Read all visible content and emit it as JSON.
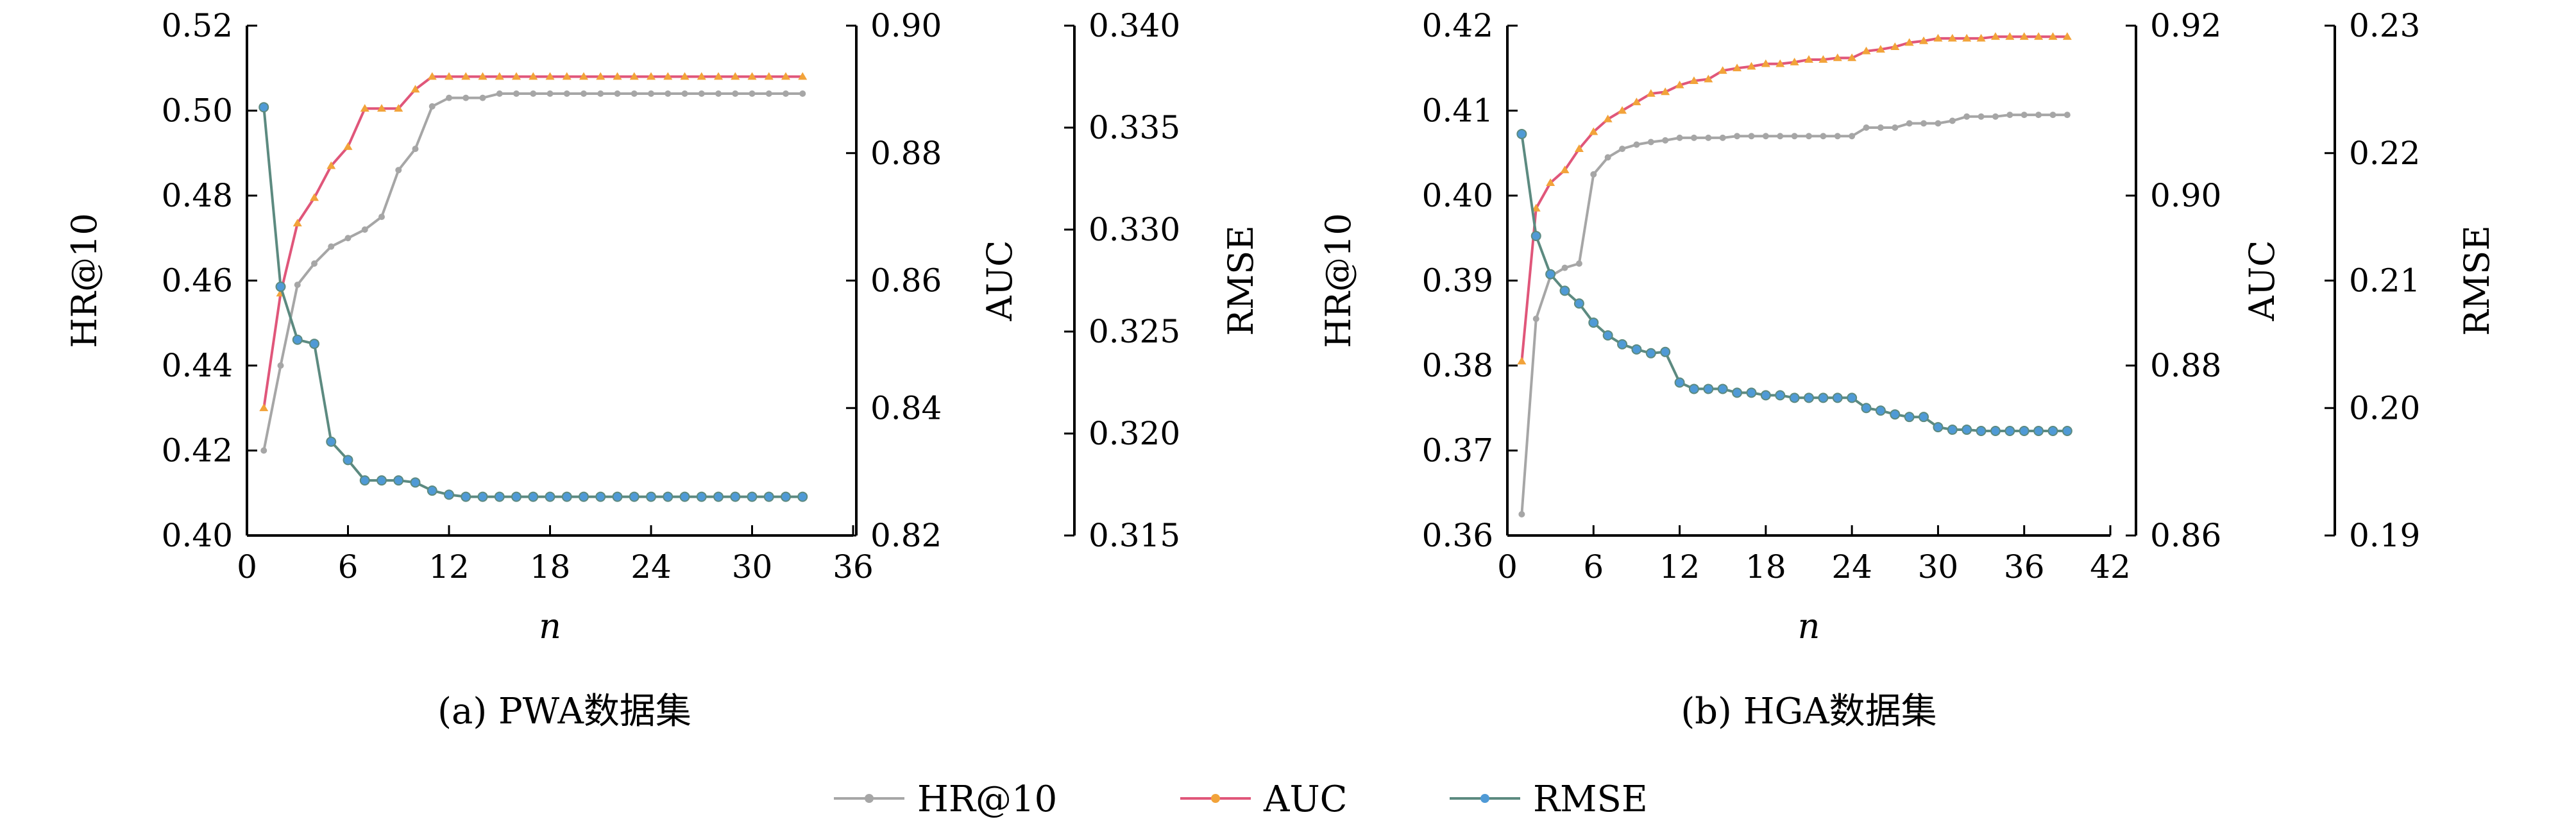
{
  "colors": {
    "hr": "#a6a6a6",
    "auc": "#e0567a",
    "rmse": "#5c8a80",
    "marker_auc": "#f2a33a",
    "marker_rmse": "#4f9ad6"
  },
  "legend": {
    "hr": "HR@10",
    "auc": "AUC",
    "rmse": "RMSE"
  },
  "chart_data": [
    {
      "type": "line",
      "caption": "(a) PWA数据集",
      "xlabel": "n",
      "xlim": [
        0,
        36
      ],
      "xticks": [
        "0",
        "6",
        "12",
        "18",
        "24",
        "30",
        "36"
      ],
      "axes": {
        "hr": {
          "label": "HR@10",
          "ylim": [
            0.4,
            0.52
          ],
          "ticks": [
            "0.40",
            "0.42",
            "0.44",
            "0.46",
            "0.48",
            "0.50",
            "0.52"
          ]
        },
        "auc": {
          "label": "AUC",
          "ylim": [
            0.82,
            0.9
          ],
          "ticks": [
            "0.82",
            "0.84",
            "0.86",
            "0.88",
            "0.90"
          ]
        },
        "rmse": {
          "label": "RMSE",
          "ylim": [
            0.315,
            0.34
          ],
          "ticks": [
            "0.315",
            "0.320",
            "0.325",
            "0.330",
            "0.335",
            "0.340"
          ]
        }
      },
      "x": [
        1,
        2,
        3,
        4,
        5,
        6,
        7,
        8,
        9,
        10,
        11,
        12,
        13,
        14,
        15,
        16,
        17,
        18,
        19,
        20,
        21,
        22,
        23,
        24,
        25,
        26,
        27,
        28,
        29,
        30,
        31,
        32,
        33
      ],
      "series": [
        {
          "name": "HR@10",
          "axis": "hr",
          "values": [
            0.42,
            0.44,
            0.459,
            0.464,
            0.468,
            0.47,
            0.472,
            0.475,
            0.486,
            0.491,
            0.501,
            0.503,
            0.503,
            0.503,
            0.504,
            0.504,
            0.504,
            0.504,
            0.504,
            0.504,
            0.504,
            0.504,
            0.504,
            0.504,
            0.504,
            0.504,
            0.504,
            0.504,
            0.504,
            0.504,
            0.504,
            0.504,
            0.504
          ]
        },
        {
          "name": "AUC",
          "axis": "auc",
          "values": [
            0.84,
            0.858,
            0.869,
            0.873,
            0.878,
            0.881,
            0.887,
            0.887,
            0.887,
            0.89,
            0.892,
            0.892,
            0.892,
            0.892,
            0.892,
            0.892,
            0.892,
            0.892,
            0.892,
            0.892,
            0.892,
            0.892,
            0.892,
            0.892,
            0.892,
            0.892,
            0.892,
            0.892,
            0.892,
            0.892,
            0.892,
            0.892,
            0.892
          ]
        },
        {
          "name": "RMSE",
          "axis": "rmse",
          "values": [
            0.336,
            0.3272,
            0.3246,
            0.3244,
            0.3196,
            0.3187,
            0.3177,
            0.3177,
            0.3177,
            0.3176,
            0.3172,
            0.317,
            0.3169,
            0.3169,
            0.3169,
            0.3169,
            0.3169,
            0.3169,
            0.3169,
            0.3169,
            0.3169,
            0.3169,
            0.3169,
            0.3169,
            0.3169,
            0.3169,
            0.3169,
            0.3169,
            0.3169,
            0.3169,
            0.3169,
            0.3169,
            0.3169
          ]
        }
      ]
    },
    {
      "type": "line",
      "caption": "(b) HGA数据集",
      "xlabel": "n",
      "xlim": [
        0,
        42
      ],
      "xticks": [
        "0",
        "6",
        "12",
        "18",
        "24",
        "30",
        "36",
        "42"
      ],
      "axes": {
        "hr": {
          "label": "HR@10",
          "ylim": [
            0.36,
            0.42
          ],
          "ticks": [
            "0.36",
            "0.37",
            "0.38",
            "0.39",
            "0.40",
            "0.41",
            "0.42"
          ]
        },
        "auc": {
          "label": "AUC",
          "ylim": [
            0.86,
            0.92
          ],
          "ticks": [
            "0.86",
            "0.88",
            "0.90",
            "0.92"
          ]
        },
        "rmse": {
          "label": "RMSE",
          "ylim": [
            0.19,
            0.23
          ],
          "ticks": [
            "0.19",
            "0.20",
            "0.21",
            "0.22",
            "0.23"
          ]
        }
      },
      "x": [
        1,
        2,
        3,
        4,
        5,
        6,
        7,
        8,
        9,
        10,
        11,
        12,
        13,
        14,
        15,
        16,
        17,
        18,
        19,
        20,
        21,
        22,
        23,
        24,
        25,
        26,
        27,
        28,
        29,
        30,
        31,
        32,
        33,
        34,
        35,
        36,
        37,
        38,
        39
      ],
      "series": [
        {
          "name": "HR@10",
          "axis": "hr",
          "values": [
            0.3625,
            0.3855,
            0.3905,
            0.3915,
            0.392,
            0.4025,
            0.4045,
            0.4055,
            0.406,
            0.4063,
            0.4065,
            0.4068,
            0.4068,
            0.4068,
            0.4068,
            0.407,
            0.407,
            0.407,
            0.407,
            0.407,
            0.407,
            0.407,
            0.407,
            0.407,
            0.408,
            0.408,
            0.408,
            0.4085,
            0.4085,
            0.4085,
            0.4088,
            0.4093,
            0.4093,
            0.4093,
            0.4095,
            0.4095,
            0.4095,
            0.4095,
            0.4095
          ]
        },
        {
          "name": "AUC",
          "axis": "auc",
          "values": [
            0.8805,
            0.8985,
            0.9015,
            0.903,
            0.9055,
            0.9075,
            0.909,
            0.91,
            0.911,
            0.912,
            0.9122,
            0.913,
            0.9135,
            0.9137,
            0.9147,
            0.915,
            0.9152,
            0.9155,
            0.9155,
            0.9157,
            0.916,
            0.916,
            0.9162,
            0.9162,
            0.917,
            0.9172,
            0.9175,
            0.918,
            0.9182,
            0.9185,
            0.9185,
            0.9185,
            0.9185,
            0.9187,
            0.9187,
            0.9187,
            0.9187,
            0.9187,
            0.9187
          ]
        },
        {
          "name": "RMSE",
          "axis": "rmse",
          "values": [
            0.2215,
            0.2135,
            0.2105,
            0.2092,
            0.2082,
            0.2067,
            0.2057,
            0.205,
            0.2046,
            0.2043,
            0.2044,
            0.202,
            0.2015,
            0.2015,
            0.2015,
            0.2012,
            0.2012,
            0.201,
            0.201,
            0.2008,
            0.2008,
            0.2008,
            0.2008,
            0.2008,
            0.2,
            0.1998,
            0.1995,
            0.1993,
            0.1993,
            0.1985,
            0.1983,
            0.1983,
            0.1982,
            0.1982,
            0.1982,
            0.1982,
            0.1982,
            0.1982,
            0.1982
          ]
        }
      ]
    }
  ]
}
